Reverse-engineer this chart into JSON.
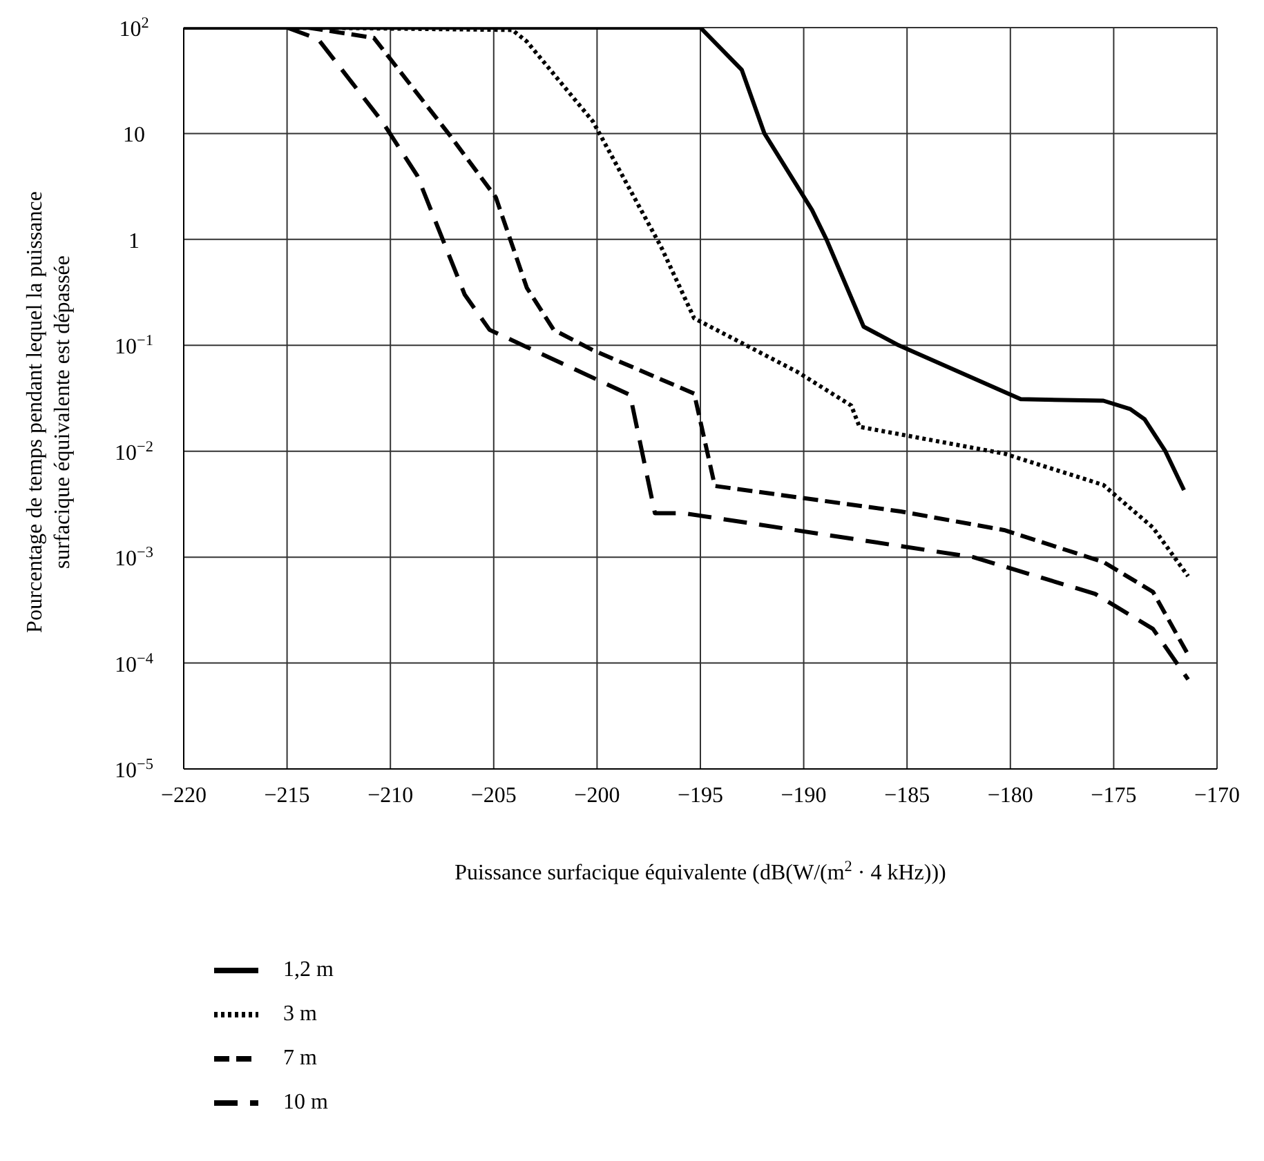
{
  "chart_data": {
    "type": "line",
    "xlabel": "Puissance surfacique équivalente (dB(W/(m$^{2}$ · 4 kHz)))",
    "ylabel": "Pourcentage de temps pendant lequel la puissance surfacique équivalente est dépassée",
    "log": "y",
    "grid": true,
    "legend": "bottom",
    "xlim": [
      -220,
      -170
    ],
    "xticks": [
      {
        "value": -220,
        "label": "−220"
      },
      {
        "value": -215,
        "label": "−215"
      },
      {
        "value": -210,
        "label": "−210"
      },
      {
        "value": -205,
        "label": "−205"
      },
      {
        "value": -200,
        "label": "−200"
      },
      {
        "value": -195,
        "label": "−195"
      },
      {
        "value": -190,
        "label": "−190"
      },
      {
        "value": -185,
        "label": "−185"
      },
      {
        "value": -180,
        "label": "−180"
      },
      {
        "value": -175,
        "label": "−175"
      },
      {
        "value": -170,
        "label": "−170"
      }
    ],
    "ylim": [
      1e-05,
      100
    ],
    "yticks": [
      {
        "value": 100,
        "label": "10$^{2}$"
      },
      10,
      1,
      {
        "value": 0.1,
        "label": "10$^{−1}$"
      },
      {
        "value": 0.01,
        "label": "10$^{−2}$"
      },
      {
        "value": 0.001,
        "label": "10$^{−3}$"
      },
      {
        "value": 0.0001,
        "label": "10$^{−4}$"
      },
      {
        "value": 1e-05,
        "label": "10$^{−5}$"
      }
    ],
    "series": [
      {
        "name": "1,2 m",
        "color": "#000000",
        "line_style": "solid",
        "x": [
          -220,
          -195,
          -193,
          -191.9,
          -189.6,
          -188.9,
          -187.1,
          -185.4,
          -179.5,
          -175.5,
          -174.2,
          -173.5,
          -172.5,
          -171.6
        ],
        "values": [
          100,
          100,
          40,
          10,
          1.9,
          1,
          0.15,
          0.1,
          0.031,
          0.03,
          0.025,
          0.02,
          0.01,
          0.0043
        ]
      },
      {
        "name": "3 m",
        "color": "#000000",
        "line_style": "dotted",
        "x": [
          -214,
          -204.1,
          -203.4,
          -200.2,
          -196.9,
          -195.3,
          -190.3,
          -187.7,
          -187.3,
          -180.3,
          -175.5,
          -173.1,
          -171.4
        ],
        "values": [
          100,
          95,
          74,
          13,
          0.85,
          0.18,
          0.056,
          0.027,
          0.017,
          0.0095,
          0.0048,
          0.0019,
          0.00066
        ]
      },
      {
        "name": "7 m",
        "color": "#000000",
        "line_style": "dashed",
        "x": [
          -214,
          -210.8,
          -207.1,
          -204.9,
          -203.4,
          -202.1,
          -200.2,
          -195.3,
          -194.3,
          -185.3,
          -180.3,
          -175.5,
          -173.1,
          -171.4
        ],
        "values": [
          100,
          80,
          9.5,
          2.5,
          0.35,
          0.14,
          0.09,
          0.035,
          0.0047,
          0.0027,
          0.0018,
          0.0009,
          0.00047,
          0.00012
        ]
      },
      {
        "name": "10 m",
        "color": "#000000",
        "line_style": "dashed",
        "x": [
          -215,
          -213.5,
          -210.4,
          -208.7,
          -206.4,
          -205.2,
          -198.4,
          -197.2,
          -195.8,
          -181.8,
          -175.9,
          -173.1,
          -171.4
        ],
        "values": [
          100,
          78,
          13,
          4,
          0.3,
          0.14,
          0.034,
          0.0026,
          0.0026,
          0.001,
          0.00045,
          0.00021,
          7e-05
        ]
      }
    ]
  }
}
